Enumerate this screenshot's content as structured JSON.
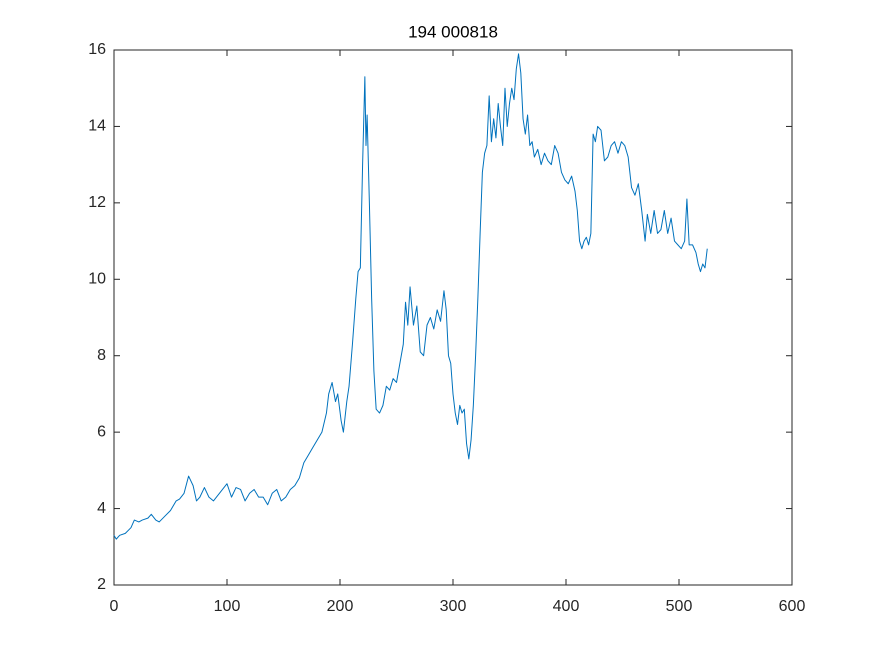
{
  "chart_data": {
    "type": "line",
    "title": "194  000818",
    "xlim": [
      0,
      600
    ],
    "xticks": [
      0,
      100,
      200,
      300,
      400,
      500,
      600
    ],
    "ylim": [
      2,
      16
    ],
    "yticks": [
      2,
      4,
      6,
      8,
      10,
      12,
      14,
      16
    ],
    "grid": false,
    "series": [
      {
        "color": "#0072bd",
        "x": [
          0,
          2,
          5,
          10,
          15,
          18,
          22,
          25,
          30,
          33,
          37,
          40,
          45,
          50,
          55,
          58,
          62,
          66,
          70,
          73,
          76,
          80,
          84,
          88,
          92,
          96,
          100,
          104,
          108,
          112,
          116,
          120,
          124,
          128,
          132,
          136,
          140,
          144,
          148,
          152,
          156,
          160,
          164,
          168,
          172,
          176,
          180,
          184,
          188,
          190,
          193,
          196,
          198,
          201,
          203,
          206,
          208,
          211,
          214,
          216,
          218,
          220,
          222,
          223,
          224,
          226,
          228,
          230,
          232,
          235,
          238,
          241,
          244,
          247,
          250,
          253,
          256,
          258,
          260,
          262,
          265,
          268,
          271,
          274,
          277,
          280,
          283,
          286,
          289,
          292,
          294,
          296,
          298,
          300,
          302,
          304,
          306,
          308,
          310,
          312,
          314,
          316,
          318,
          320,
          322,
          324,
          326,
          328,
          330,
          332,
          334,
          336,
          338,
          340,
          342,
          344,
          346,
          348,
          350,
          352,
          354,
          356,
          358,
          360,
          362,
          364,
          366,
          368,
          370,
          372,
          375,
          378,
          381,
          384,
          387,
          390,
          393,
          396,
          399,
          402,
          405,
          408,
          410,
          412,
          414,
          416,
          418,
          420,
          422,
          424,
          426,
          428,
          431,
          434,
          437,
          440,
          443,
          446,
          449,
          452,
          455,
          458,
          461,
          464,
          467,
          470,
          472,
          475,
          478,
          481,
          484,
          487,
          490,
          493,
          496,
          499,
          502,
          505,
          507,
          509,
          512,
          515,
          517,
          519,
          521,
          523,
          525
        ],
        "values": [
          3.3,
          3.2,
          3.3,
          3.35,
          3.5,
          3.7,
          3.65,
          3.7,
          3.75,
          3.85,
          3.7,
          3.65,
          3.8,
          3.95,
          4.2,
          4.25,
          4.4,
          4.85,
          4.6,
          4.2,
          4.3,
          4.55,
          4.3,
          4.2,
          4.35,
          4.5,
          4.65,
          4.3,
          4.55,
          4.5,
          4.2,
          4.4,
          4.5,
          4.3,
          4.3,
          4.1,
          4.4,
          4.5,
          4.2,
          4.3,
          4.5,
          4.6,
          4.8,
          5.2,
          5.4,
          5.6,
          5.8,
          6.0,
          6.5,
          7.0,
          7.3,
          6.8,
          7.0,
          6.3,
          6.0,
          6.8,
          7.2,
          8.3,
          9.5,
          10.2,
          10.3,
          13.0,
          15.3,
          13.5,
          14.3,
          12.0,
          9.5,
          7.6,
          6.6,
          6.5,
          6.7,
          7.2,
          7.1,
          7.4,
          7.3,
          7.8,
          8.3,
          9.4,
          8.8,
          9.8,
          8.8,
          9.3,
          8.1,
          8.0,
          8.8,
          9.0,
          8.7,
          9.2,
          8.9,
          9.7,
          9.2,
          8.0,
          7.8,
          7.0,
          6.5,
          6.2,
          6.7,
          6.5,
          6.6,
          5.7,
          5.3,
          5.8,
          6.7,
          8.0,
          9.5,
          11.2,
          12.8,
          13.3,
          13.5,
          14.8,
          13.6,
          14.2,
          13.7,
          14.6,
          14.0,
          13.5,
          15.0,
          14.0,
          14.6,
          15.0,
          14.7,
          15.5,
          15.9,
          15.4,
          14.2,
          13.8,
          14.3,
          13.5,
          13.6,
          13.2,
          13.4,
          13.0,
          13.3,
          13.1,
          13.0,
          13.5,
          13.3,
          12.8,
          12.6,
          12.5,
          12.7,
          12.3,
          11.8,
          11.0,
          10.8,
          11.0,
          11.1,
          10.9,
          11.2,
          13.8,
          13.6,
          14.0,
          13.9,
          13.1,
          13.2,
          13.5,
          13.6,
          13.3,
          13.6,
          13.5,
          13.2,
          12.4,
          12.2,
          12.5,
          11.8,
          11.0,
          11.7,
          11.2,
          11.8,
          11.2,
          11.3,
          11.8,
          11.2,
          11.6,
          11.0,
          10.9,
          10.8,
          11.0,
          12.1,
          10.9,
          10.9,
          10.7,
          10.4,
          10.2,
          10.4,
          10.3,
          10.8
        ]
      }
    ]
  }
}
